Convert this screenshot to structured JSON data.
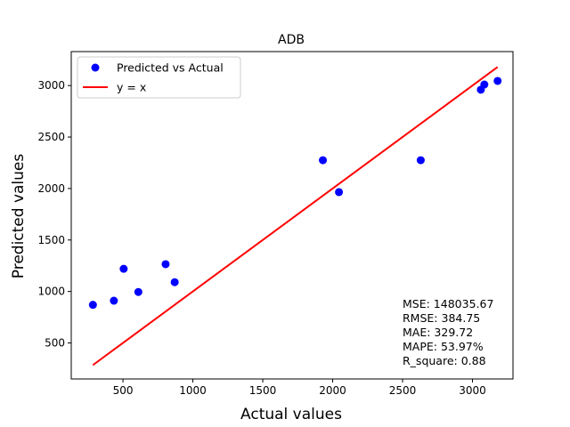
{
  "chart_data": {
    "type": "scatter",
    "title": "ADB",
    "xlabel": "Actual values",
    "ylabel": "Predicted values",
    "xlim": [
      130,
      3290
    ],
    "ylim": [
      150,
      3330
    ],
    "xticks": [
      500,
      1000,
      1500,
      2000,
      2500,
      3000
    ],
    "yticks": [
      500,
      1000,
      1500,
      2000,
      2500,
      3000
    ],
    "grid": false,
    "legend_position": "top-left",
    "series": [
      {
        "name": "Predicted vs Actual",
        "kind": "scatter",
        "color": "#0000ff",
        "x": [
          285,
          435,
          505,
          610,
          805,
          870,
          1930,
          2045,
          2630,
          3060,
          3085,
          3180
        ],
        "y": [
          870,
          910,
          1220,
          995,
          1265,
          1090,
          2275,
          1965,
          2275,
          2960,
          3010,
          3045
        ]
      },
      {
        "name": "y = x",
        "kind": "line",
        "color": "#ff0000",
        "x": [
          285,
          3180
        ],
        "y": [
          285,
          3180
        ]
      }
    ],
    "annotations": {
      "stats": [
        "MSE: 148035.67",
        "RMSE: 384.75",
        "MAE: 329.72",
        "MAPE: 53.97%",
        "R_square: 0.88"
      ]
    }
  }
}
